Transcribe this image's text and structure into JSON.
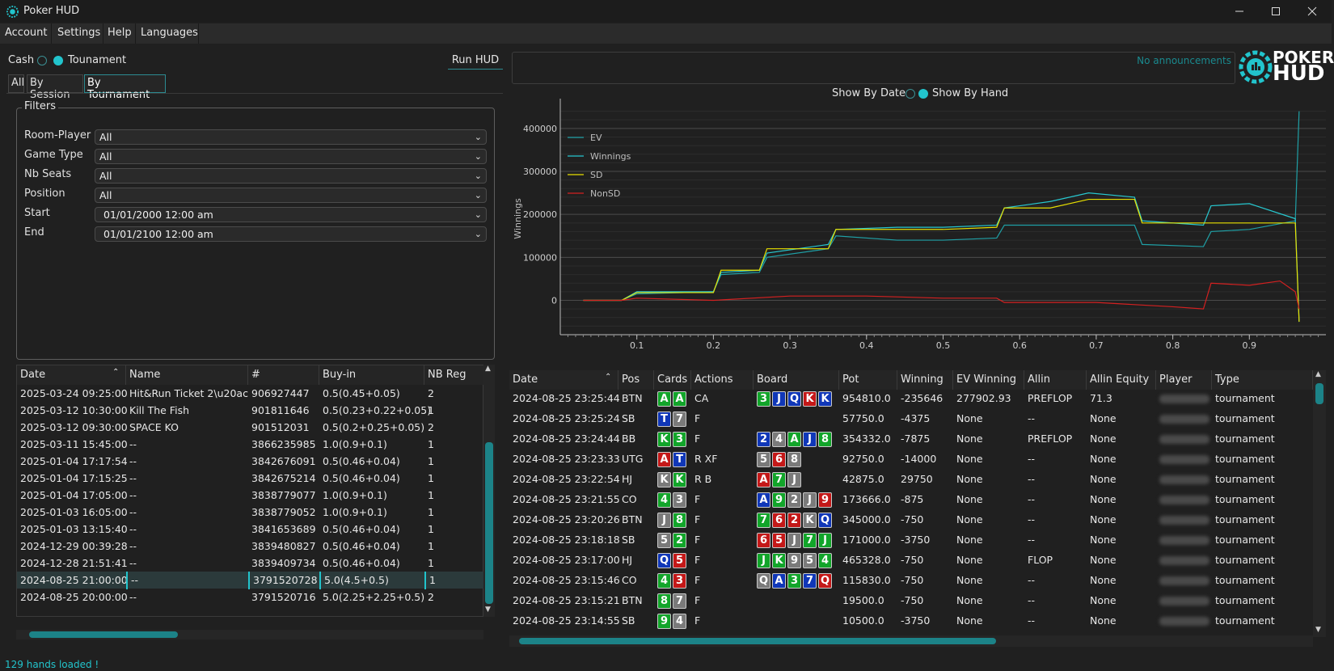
{
  "window": {
    "title": "Poker HUD"
  },
  "menu": [
    "Account",
    "Settings",
    "Help",
    "Languages"
  ],
  "mode": {
    "cash_label": "Cash",
    "tournament_label": "Tounament",
    "selected": "tournament"
  },
  "run_hud_label": "Run HUD",
  "tabs": [
    "All",
    "By Session",
    "By Tournament"
  ],
  "active_tab": "By Tournament",
  "filters": {
    "legend": "Filters",
    "rows": [
      {
        "label": "Room-Player",
        "value": "All"
      },
      {
        "label": "Game Type",
        "value": "All"
      },
      {
        "label": "Nb Seats",
        "value": "All"
      },
      {
        "label": "Position",
        "value": "All"
      },
      {
        "label": "Start",
        "value": "01/01/2000 12:00 am"
      },
      {
        "label": "End",
        "value": "01/01/2100 12:00 am"
      }
    ]
  },
  "tournaments": {
    "columns": [
      "Date",
      "Name",
      "#",
      "Buy-in",
      "NB Reg"
    ],
    "rows": [
      [
        "2025-03-24 09:25:00",
        "Hit&Run Ticket 2\\u20ac",
        "906927447",
        "0.5(0.45+0.05)",
        "2"
      ],
      [
        "2025-03-12 10:30:00",
        "Kill The Fish",
        "901811646",
        "0.5(0.23+0.22+0.05)",
        "1"
      ],
      [
        "2025-03-12 09:30:00",
        "SPACE KO",
        "901512031",
        "0.5(0.2+0.25+0.05)",
        "2"
      ],
      [
        "2025-03-11 15:45:00",
        "--",
        "3866235985",
        "1.0(0.9+0.1)",
        "1"
      ],
      [
        "2025-01-04 17:17:54",
        "--",
        "3842676091",
        "0.5(0.46+0.04)",
        "1"
      ],
      [
        "2025-01-04 17:15:25",
        "--",
        "3842675214",
        "0.5(0.46+0.04)",
        "1"
      ],
      [
        "2025-01-04 17:05:00",
        "--",
        "3838779077",
        "1.0(0.9+0.1)",
        "1"
      ],
      [
        "2025-01-03 16:05:00",
        "--",
        "3838779052",
        "1.0(0.9+0.1)",
        "1"
      ],
      [
        "2025-01-03 13:15:40",
        "--",
        "3841653689",
        "0.5(0.46+0.04)",
        "1"
      ],
      [
        "2024-12-29 00:39:28",
        "--",
        "3839480827",
        "0.5(0.46+0.04)",
        "1"
      ],
      [
        "2024-12-28 21:51:41",
        "--",
        "3839409734",
        "0.5(0.46+0.04)",
        "1"
      ],
      [
        "2024-08-25 21:00:00",
        "--",
        "3791520728",
        "5.0(4.5+0.5)",
        "1"
      ],
      [
        "2024-08-25 20:00:00",
        "--",
        "3791520716",
        "5.0(2.25+2.25+0.5)",
        "2"
      ]
    ],
    "selected_row": 11
  },
  "announcements": "No announcements",
  "logo": {
    "line1": "POKER",
    "line2": "HUD"
  },
  "chart_toggle": {
    "date_label": "Show By Date",
    "hand_label": "Show By Hand",
    "selected": "hand"
  },
  "chart_data": {
    "type": "line",
    "ylabel": "Winnings",
    "xlabel": "",
    "xlim": [
      0,
      1
    ],
    "ylim": [
      -80000,
      460000
    ],
    "xticks": [
      "0.1",
      "0.2",
      "0.3",
      "0.4",
      "0.5",
      "0.6",
      "0.7",
      "0.8",
      "0.9"
    ],
    "yticks": [
      "0",
      "100000",
      "200000",
      "300000",
      "400000"
    ],
    "legend_position": "top-left",
    "series": [
      {
        "name": "EV",
        "color": "#1fa0a6",
        "x": [
          0.03,
          0.08,
          0.1,
          0.2,
          0.21,
          0.26,
          0.27,
          0.35,
          0.36,
          0.44,
          0.5,
          0.57,
          0.58,
          0.66,
          0.7,
          0.75,
          0.76,
          0.84,
          0.85,
          0.9,
          0.96,
          0.965
        ],
        "y": [
          0,
          0,
          15000,
          20000,
          60000,
          65000,
          100000,
          120000,
          150000,
          140000,
          140000,
          145000,
          175000,
          175000,
          175000,
          175000,
          130000,
          125000,
          160000,
          165000,
          185000,
          440000
        ]
      },
      {
        "name": "Winnings",
        "color": "#27c8d0",
        "x": [
          0.03,
          0.08,
          0.1,
          0.2,
          0.21,
          0.26,
          0.27,
          0.35,
          0.36,
          0.44,
          0.5,
          0.57,
          0.58,
          0.64,
          0.69,
          0.75,
          0.76,
          0.84,
          0.85,
          0.9,
          0.96,
          0.965
        ],
        "y": [
          0,
          0,
          20000,
          20000,
          65000,
          70000,
          110000,
          130000,
          165000,
          170000,
          170000,
          175000,
          215000,
          230000,
          250000,
          240000,
          185000,
          175000,
          220000,
          225000,
          190000,
          -50000
        ]
      },
      {
        "name": "SD",
        "color": "#e8e000",
        "x": [
          0.03,
          0.08,
          0.1,
          0.2,
          0.21,
          0.26,
          0.27,
          0.35,
          0.36,
          0.44,
          0.5,
          0.57,
          0.58,
          0.64,
          0.69,
          0.75,
          0.76,
          0.84,
          0.85,
          0.9,
          0.96,
          0.965
        ],
        "y": [
          0,
          0,
          18000,
          18000,
          70000,
          70000,
          120000,
          120000,
          165000,
          165000,
          165000,
          170000,
          215000,
          215000,
          235000,
          235000,
          180000,
          180000,
          180000,
          180000,
          180000,
          -50000
        ]
      },
      {
        "name": "NonSD",
        "color": "#d42020",
        "x": [
          0.03,
          0.08,
          0.1,
          0.2,
          0.3,
          0.4,
          0.5,
          0.57,
          0.58,
          0.65,
          0.7,
          0.75,
          0.8,
          0.84,
          0.85,
          0.9,
          0.94,
          0.96,
          0.965
        ],
        "y": [
          0,
          0,
          5000,
          0,
          10000,
          10000,
          5000,
          5000,
          -5000,
          -5000,
          -5000,
          -10000,
          -15000,
          -20000,
          40000,
          35000,
          45000,
          20000,
          -20000
        ]
      }
    ]
  },
  "hands": {
    "columns": [
      "Date",
      "Pos",
      "Cards",
      "Actions",
      "Board",
      "Pot",
      "Winning",
      "EV Winning",
      "Allin",
      "Allin Equity",
      "Player",
      "Type"
    ],
    "rows": [
      {
        "date": "2024-08-25 23:25:44",
        "pos": "BTN",
        "cards": [
          [
            "A",
            "c"
          ],
          [
            "A",
            "c"
          ]
        ],
        "actions": "CA",
        "board": [
          [
            "3",
            "c"
          ],
          [
            "J",
            "d"
          ],
          [
            "Q",
            "d"
          ],
          [
            "K",
            "h"
          ],
          [
            "K",
            "d"
          ]
        ],
        "pot": "954810.0",
        "winning": "-235646",
        "ev": "277902.93",
        "allin": "PREFLOP",
        "equity": "71.3",
        "type": "tournament"
      },
      {
        "date": "2024-08-25 23:25:24",
        "pos": "SB",
        "cards": [
          [
            "T",
            "d"
          ],
          [
            "7",
            "s"
          ]
        ],
        "actions": "F",
        "board": [],
        "pot": "57750.0",
        "winning": "-4375",
        "ev": "None",
        "allin": "--",
        "equity": "None",
        "type": "tournament"
      },
      {
        "date": "2024-08-25 23:24:44",
        "pos": "BB",
        "cards": [
          [
            "K",
            "c"
          ],
          [
            "3",
            "c"
          ]
        ],
        "actions": "F",
        "board": [
          [
            "2",
            "d"
          ],
          [
            "4",
            "s"
          ],
          [
            "A",
            "c"
          ],
          [
            "J",
            "d"
          ],
          [
            "8",
            "c"
          ]
        ],
        "pot": "354332.0",
        "winning": "-7875",
        "ev": "None",
        "allin": "PREFLOP",
        "equity": "None",
        "type": "tournament"
      },
      {
        "date": "2024-08-25 23:23:33",
        "pos": "UTG",
        "cards": [
          [
            "A",
            "h"
          ],
          [
            "T",
            "d"
          ]
        ],
        "actions": "R XF",
        "board": [
          [
            "5",
            "s"
          ],
          [
            "6",
            "h"
          ],
          [
            "8",
            "s"
          ]
        ],
        "pot": "92750.0",
        "winning": "-14000",
        "ev": "None",
        "allin": "--",
        "equity": "None",
        "type": "tournament"
      },
      {
        "date": "2024-08-25 23:22:54",
        "pos": "HJ",
        "cards": [
          [
            "K",
            "s"
          ],
          [
            "K",
            "c"
          ]
        ],
        "actions": "R B",
        "board": [
          [
            "A",
            "h"
          ],
          [
            "7",
            "c"
          ],
          [
            "J",
            "s"
          ]
        ],
        "pot": "42875.0",
        "winning": "29750",
        "ev": "None",
        "allin": "--",
        "equity": "None",
        "type": "tournament"
      },
      {
        "date": "2024-08-25 23:21:55",
        "pos": "CO",
        "cards": [
          [
            "4",
            "c"
          ],
          [
            "3",
            "s"
          ]
        ],
        "actions": "F",
        "board": [
          [
            "A",
            "d"
          ],
          [
            "9",
            "c"
          ],
          [
            "2",
            "s"
          ],
          [
            "J",
            "s"
          ],
          [
            "9",
            "h"
          ]
        ],
        "pot": "173666.0",
        "winning": "-875",
        "ev": "None",
        "allin": "--",
        "equity": "None",
        "type": "tournament"
      },
      {
        "date": "2024-08-25 23:20:26",
        "pos": "BTN",
        "cards": [
          [
            "J",
            "s"
          ],
          [
            "8",
            "c"
          ]
        ],
        "actions": "F",
        "board": [
          [
            "7",
            "c"
          ],
          [
            "6",
            "h"
          ],
          [
            "2",
            "h"
          ],
          [
            "K",
            "s"
          ],
          [
            "Q",
            "d"
          ]
        ],
        "pot": "345000.0",
        "winning": "-750",
        "ev": "None",
        "allin": "--",
        "equity": "None",
        "type": "tournament"
      },
      {
        "date": "2024-08-25 23:18:18",
        "pos": "SB",
        "cards": [
          [
            "5",
            "s"
          ],
          [
            "2",
            "c"
          ]
        ],
        "actions": "F",
        "board": [
          [
            "6",
            "h"
          ],
          [
            "5",
            "h"
          ],
          [
            "J",
            "s"
          ],
          [
            "7",
            "c"
          ],
          [
            "J",
            "c"
          ]
        ],
        "pot": "171000.0",
        "winning": "-3750",
        "ev": "None",
        "allin": "--",
        "equity": "None",
        "type": "tournament"
      },
      {
        "date": "2024-08-25 23:17:00",
        "pos": "HJ",
        "cards": [
          [
            "Q",
            "d"
          ],
          [
            "5",
            "h"
          ]
        ],
        "actions": "F",
        "board": [
          [
            "J",
            "c"
          ],
          [
            "K",
            "c"
          ],
          [
            "9",
            "s"
          ],
          [
            "5",
            "s"
          ],
          [
            "4",
            "c"
          ]
        ],
        "pot": "465328.0",
        "winning": "-750",
        "ev": "None",
        "allin": "FLOP",
        "equity": "None",
        "type": "tournament"
      },
      {
        "date": "2024-08-25 23:15:46",
        "pos": "CO",
        "cards": [
          [
            "4",
            "c"
          ],
          [
            "3",
            "h"
          ]
        ],
        "actions": "F",
        "board": [
          [
            "Q",
            "s"
          ],
          [
            "A",
            "d"
          ],
          [
            "3",
            "c"
          ],
          [
            "7",
            "d"
          ],
          [
            "Q",
            "h"
          ]
        ],
        "pot": "115830.0",
        "winning": "-750",
        "ev": "None",
        "allin": "--",
        "equity": "None",
        "type": "tournament"
      },
      {
        "date": "2024-08-25 23:15:21",
        "pos": "BTN",
        "cards": [
          [
            "8",
            "c"
          ],
          [
            "7",
            "s"
          ]
        ],
        "actions": "F",
        "board": [],
        "pot": "19500.0",
        "winning": "-750",
        "ev": "None",
        "allin": "--",
        "equity": "None",
        "type": "tournament"
      },
      {
        "date": "2024-08-25 23:14:55",
        "pos": "SB",
        "cards": [
          [
            "9",
            "c"
          ],
          [
            "4",
            "s"
          ]
        ],
        "actions": "F",
        "board": [],
        "pot": "10500.0",
        "winning": "-3750",
        "ev": "None",
        "allin": "--",
        "equity": "None",
        "type": "tournament"
      }
    ]
  },
  "status": "129 hands loaded !"
}
